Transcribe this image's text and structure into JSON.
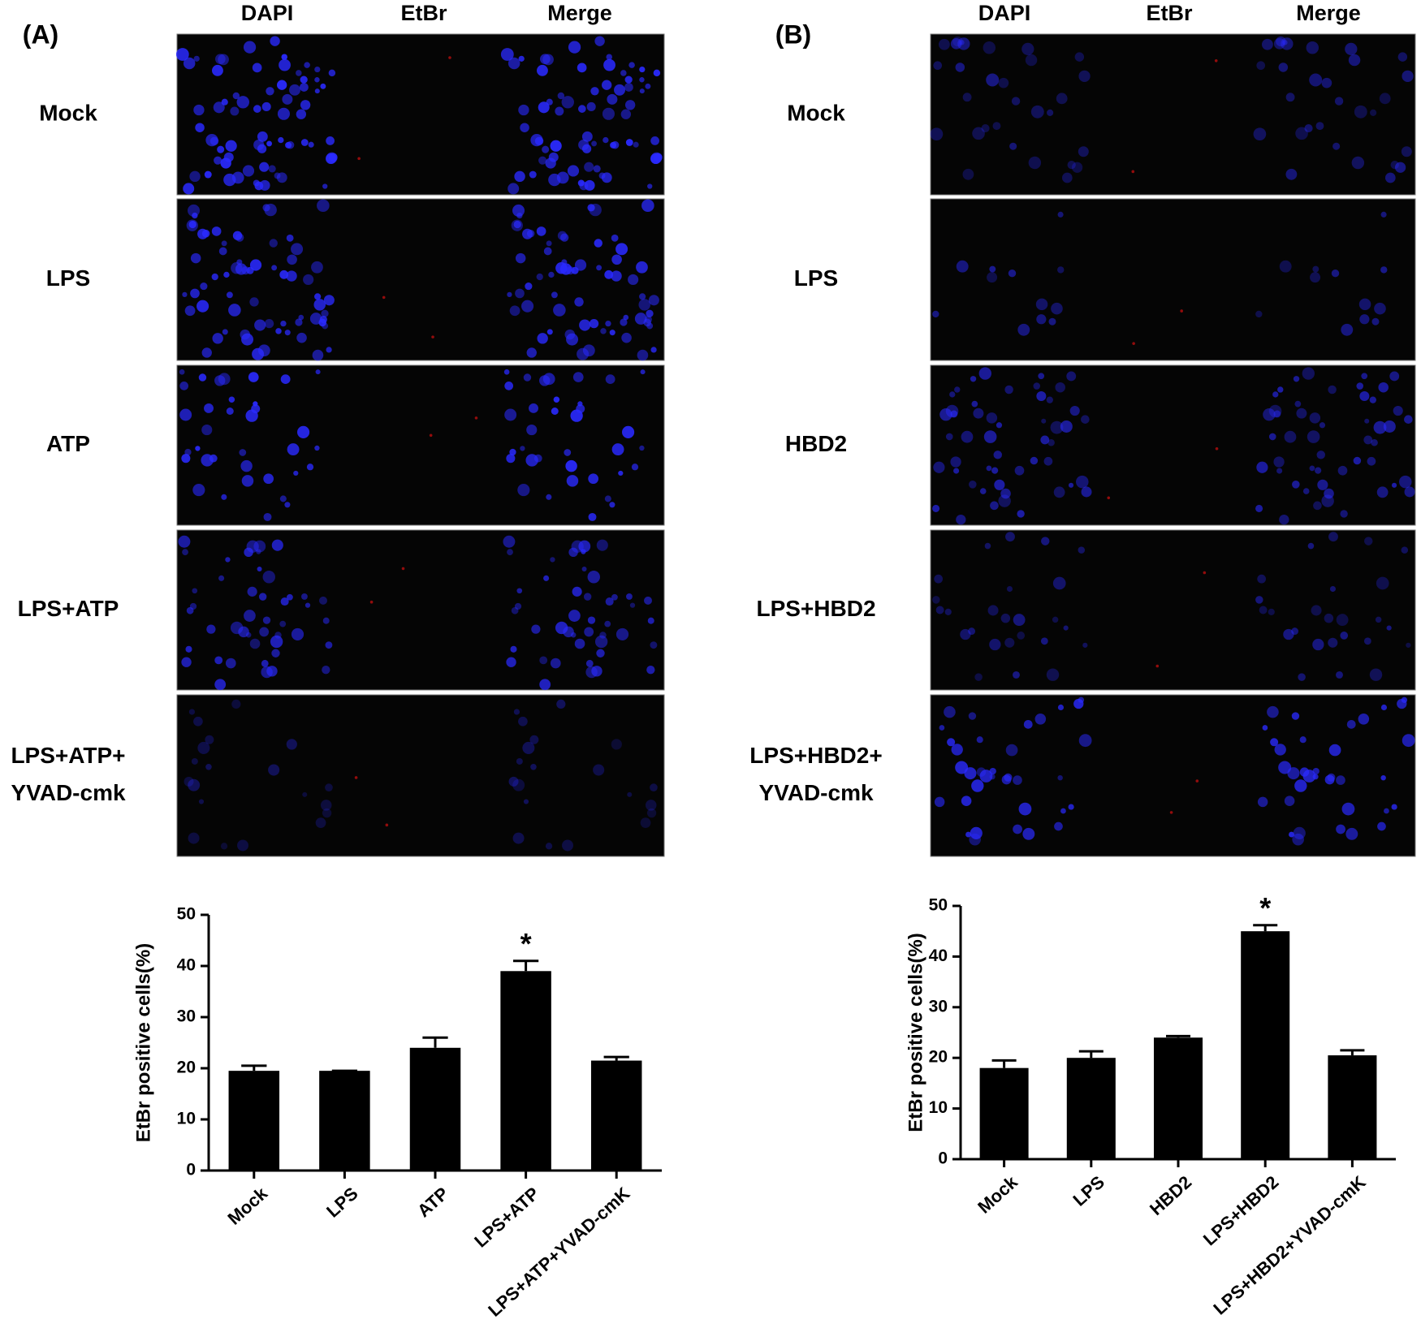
{
  "panels": [
    {
      "label": "(A)",
      "columns": [
        "DAPI",
        "EtBr",
        "Merge"
      ],
      "rows": [
        [
          "Mock"
        ],
        [
          "LPS"
        ],
        [
          "ATP"
        ],
        [
          "LPS+ATP"
        ],
        [
          "LPS+ATP+",
          "YVAD-cmk"
        ]
      ]
    },
    {
      "label": "(B)",
      "columns": [
        "DAPI",
        "EtBr",
        "Merge"
      ],
      "rows": [
        [
          "Mock"
        ],
        [
          "LPS"
        ],
        [
          "HBD2"
        ],
        [
          "LPS+HBD2"
        ],
        [
          "LPS+HBD2+",
          "YVAD-cmk"
        ]
      ]
    }
  ],
  "chart_data": [
    {
      "type": "bar",
      "y_label": "EtBr positive cells(%)",
      "categories": [
        "Mock",
        "LPS",
        "ATP",
        "LPS+ATP",
        "LPS+ATP+YVAD-cmK"
      ],
      "values": [
        19.5,
        19.5,
        24,
        39,
        21.5
      ],
      "errors": [
        1,
        0,
        2,
        2,
        0.7
      ],
      "color": "#000000",
      "ylim": [
        0,
        50
      ],
      "yticks": [
        0,
        10,
        20,
        30,
        40,
        50
      ],
      "annotations": [
        {
          "text": "*",
          "category": "LPS+ATP"
        }
      ]
    },
    {
      "type": "bar",
      "y_label": "EtBr positive cells(%)",
      "categories": [
        "Mock",
        "LPS",
        "HBD2",
        "LPS+HBD2",
        "LPS+HBD2+YVAD-cmK"
      ],
      "values": [
        18,
        20,
        24,
        45,
        20.5
      ],
      "errors": [
        1.5,
        1.3,
        0.3,
        1.2,
        1
      ],
      "color": "#000000",
      "ylim": [
        0,
        50
      ],
      "yticks": [
        0,
        10,
        20,
        30,
        40,
        50
      ],
      "annotations": [
        {
          "text": "*",
          "category": "LPS+HBD2"
        }
      ]
    }
  ]
}
